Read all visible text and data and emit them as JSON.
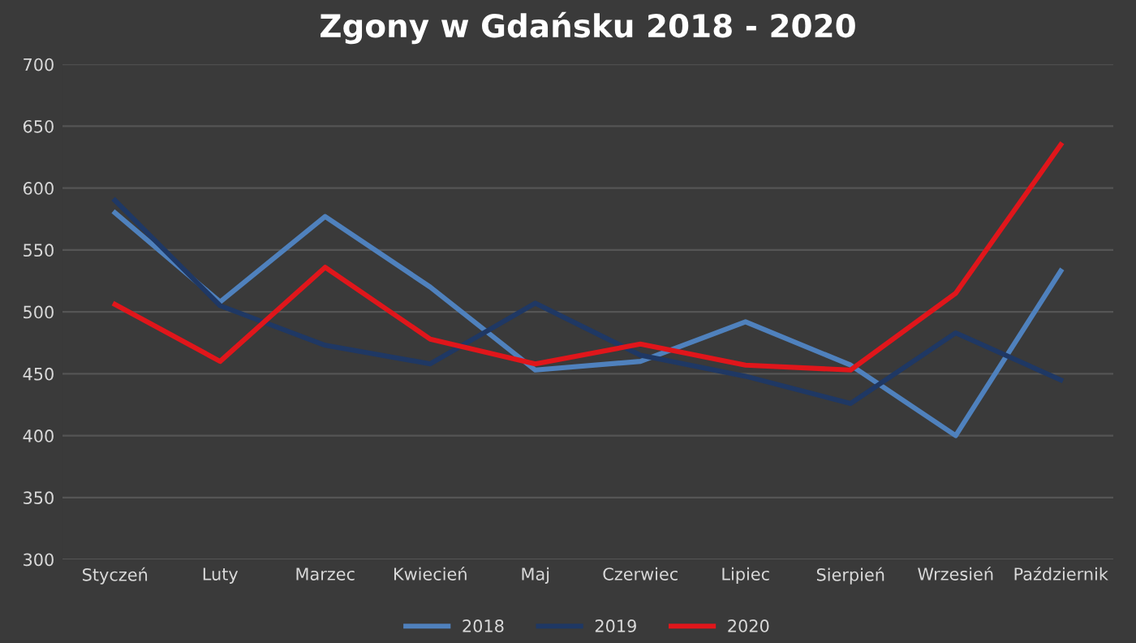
{
  "chart_data": {
    "type": "line",
    "title": "Zgony w Gdańsku 2018 - 2020",
    "categories": [
      "Styczeń",
      "Luty",
      "Marzec",
      "Kwiecień",
      "Maj",
      "Czerwiec",
      "Lipiec",
      "Sierpień",
      "Wrzesień",
      "Październik"
    ],
    "series": [
      {
        "name": "2018",
        "color": "#4f81bd",
        "values": [
          580,
          508,
          577,
          520,
          453,
          460,
          492,
          457,
          400,
          533
        ]
      },
      {
        "name": "2019",
        "color": "#1f3864",
        "values": [
          590,
          505,
          473,
          458,
          507,
          465,
          448,
          426,
          483,
          445
        ]
      },
      {
        "name": "2020",
        "color": "#e0161b",
        "values": [
          506,
          460,
          536,
          478,
          458,
          474,
          457,
          453,
          515,
          635
        ]
      }
    ],
    "ylim": [
      300,
      700
    ],
    "yticks": [
      300,
      350,
      400,
      450,
      500,
      550,
      600,
      650,
      700
    ],
    "grid": "y",
    "legend": "bottom",
    "marker": "none",
    "line_style": "solid"
  }
}
